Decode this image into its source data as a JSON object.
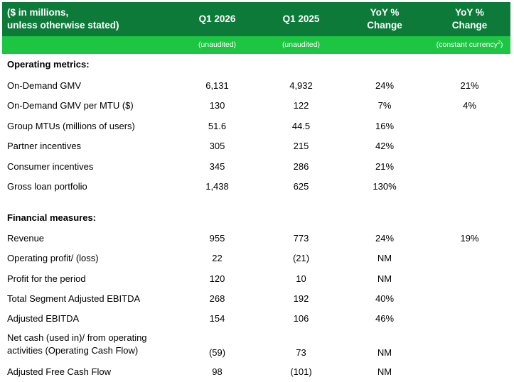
{
  "header": {
    "label": "($ in millions,\nunless otherwise stated)",
    "label_line1": "($ in millions,",
    "label_line2": "unless otherwise stated)",
    "col1": "Q1 2026",
    "col2": "Q1 2025",
    "col3_line1": "YoY %",
    "col3_line2": "Change",
    "col4_line1": "YoY %",
    "col4_line2": "Change",
    "sub1": "(unaudited)",
    "sub2": "(unaudited)",
    "sub4": "(constant currency",
    "sub4_sup": "2",
    "sub4_close": ")"
  },
  "operating": {
    "title": "Operating metrics:",
    "rows": [
      {
        "label": "On-Demand GMV",
        "q1_2026": "6,131",
        "q1_2025": "4,932",
        "yoy": "24%",
        "yoy_cc": "21%"
      },
      {
        "label": "On-Demand GMV per MTU ($)",
        "q1_2026": "130",
        "q1_2025": "122",
        "yoy": "7%",
        "yoy_cc": "4%"
      },
      {
        "label": "Group MTUs (millions of users)",
        "q1_2026": "51.6",
        "q1_2025": "44.5",
        "yoy": "16%",
        "yoy_cc": ""
      },
      {
        "label": "Partner incentives",
        "q1_2026": "305",
        "q1_2025": "215",
        "yoy": "42%",
        "yoy_cc": ""
      },
      {
        "label": "Consumer incentives",
        "q1_2026": "345",
        "q1_2025": "286",
        "yoy": "21%",
        "yoy_cc": ""
      },
      {
        "label": "Gross loan portfolio",
        "q1_2026": "1,438",
        "q1_2025": "625",
        "yoy": "130%",
        "yoy_cc": ""
      }
    ]
  },
  "financial": {
    "title": "Financial measures:",
    "rows": [
      {
        "label": "Revenue",
        "q1_2026": "955",
        "q1_2025": "773",
        "yoy": "24%",
        "yoy_cc": "19%"
      },
      {
        "label": "Operating profit/ (loss)",
        "q1_2026": "22",
        "q1_2025": "(21)",
        "yoy": "NM",
        "yoy_cc": ""
      },
      {
        "label": "Profit for the period",
        "q1_2026": "120",
        "q1_2025": "10",
        "yoy": "NM",
        "yoy_cc": ""
      },
      {
        "label": "Total Segment Adjusted EBITDA",
        "q1_2026": "268",
        "q1_2025": "192",
        "yoy": "40%",
        "yoy_cc": ""
      },
      {
        "label": "Adjusted EBITDA",
        "q1_2026": "154",
        "q1_2025": "106",
        "yoy": "46%",
        "yoy_cc": ""
      },
      {
        "label": "Net cash (used in)/ from operating activities (Operating Cash Flow)",
        "q1_2026": "(59)",
        "q1_2025": "73",
        "yoy": "NM",
        "yoy_cc": ""
      },
      {
        "label": "Adjusted Free Cash Flow",
        "q1_2026": "98",
        "q1_2025": "(101)",
        "yoy": "NM",
        "yoy_cc": ""
      }
    ]
  },
  "colors": {
    "header_dark": "#0d7a3a",
    "header_light": "#1cc542"
  }
}
